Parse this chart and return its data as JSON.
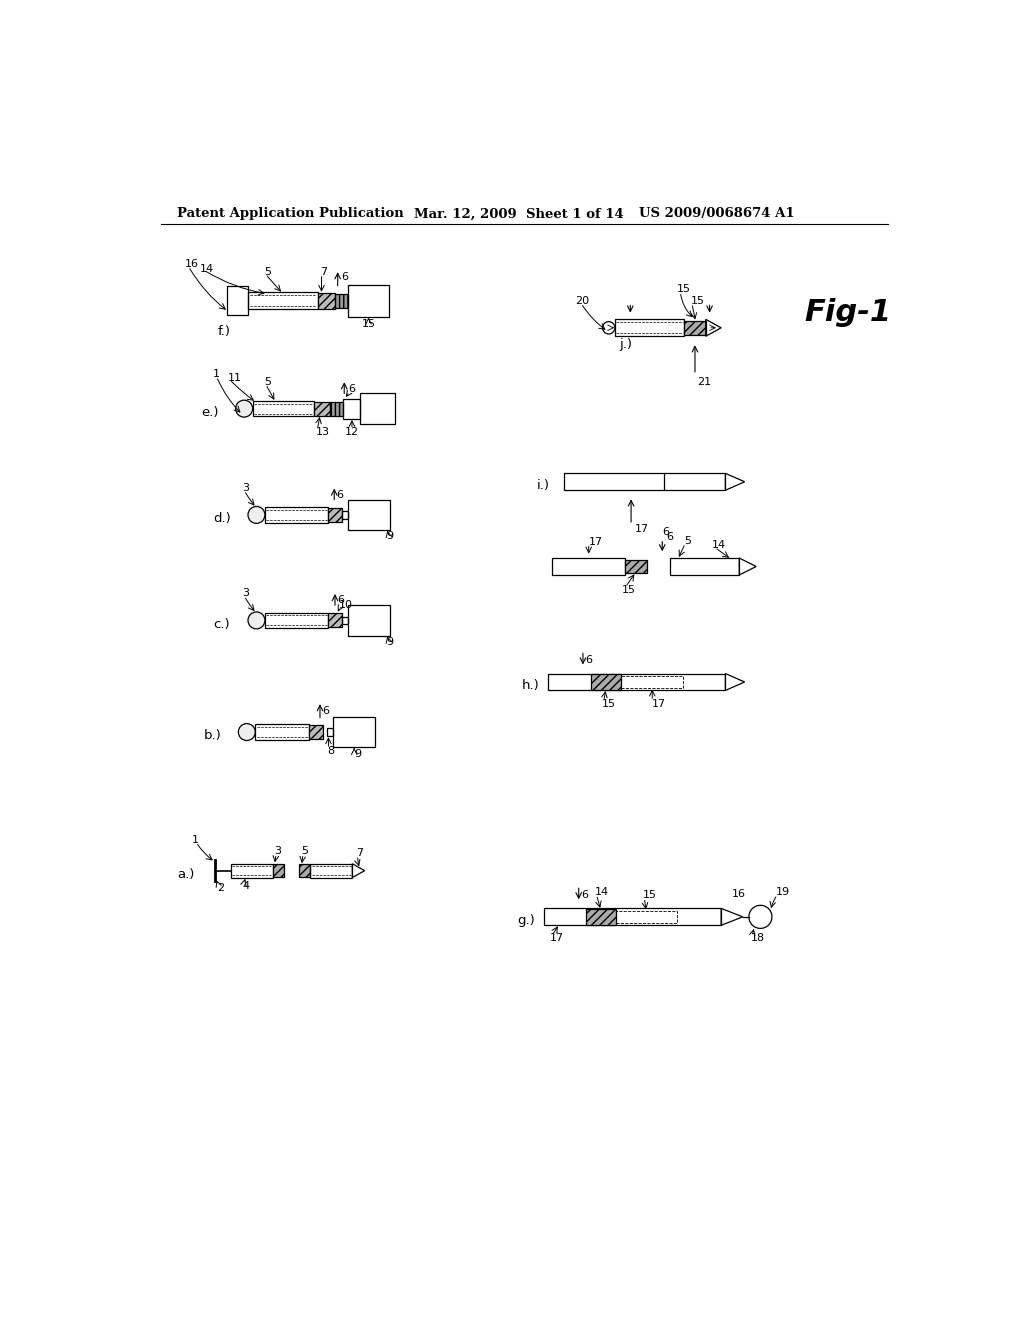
{
  "header_left": "Patent Application Publication",
  "header_mid": "Mar. 12, 2009  Sheet 1 of 14",
  "header_right": "US 2009/0068674 A1",
  "fig_label": "Fig-1",
  "bg_color": "#ffffff",
  "line_color": "#000000",
  "gray_hatch": "#888888",
  "gray_light": "#dddddd",
  "header_fontsize": 9.5,
  "fig_label_fontsize": 22,
  "label_fontsize": 8.5,
  "panel_label_fontsize": 9.5
}
